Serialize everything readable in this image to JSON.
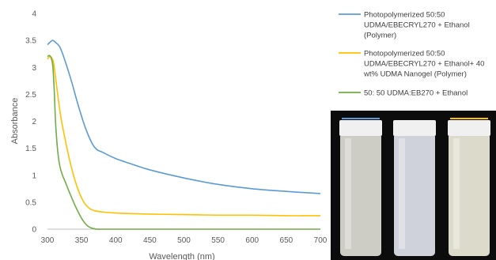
{
  "chart_data": {
    "type": "line",
    "xlabel": "Wavelength (nm)",
    "ylabel": "Absorbance",
    "xlim": [
      300,
      700
    ],
    "ylim": [
      0,
      4
    ],
    "xticks": [
      300,
      350,
      400,
      450,
      500,
      550,
      600,
      650,
      700
    ],
    "yticks": [
      0,
      0.5,
      1,
      1.5,
      2,
      2.5,
      3,
      3.5,
      4
    ],
    "grid": false,
    "legend_position": "top-right",
    "series": [
      {
        "name_lines": [
          "Photopolymerized 50:50",
          "UDMA/EBECRYL270 + Ethanol",
          "(Polymer)"
        ],
        "color": "#5b9bd5",
        "x": [
          300,
          305,
          308,
          312,
          318,
          325,
          335,
          345,
          355,
          365,
          372,
          380,
          400,
          425,
          450,
          500,
          550,
          600,
          650,
          700
        ],
        "y": [
          3.42,
          3.48,
          3.5,
          3.46,
          3.38,
          3.15,
          2.75,
          2.3,
          1.9,
          1.6,
          1.48,
          1.43,
          1.31,
          1.2,
          1.1,
          0.95,
          0.83,
          0.75,
          0.7,
          0.66
        ]
      },
      {
        "name_lines": [
          "Photopolymerized 50:50",
          "UDMA/EBECRYL270 + Ethanol+ 40",
          "wt% UDMA Nanogel  (Polymer)"
        ],
        "color": "#ffc000",
        "x": [
          300,
          303,
          306,
          309,
          312,
          316,
          320,
          325,
          330,
          335,
          340,
          345,
          350,
          355,
          360,
          365,
          370,
          380,
          400,
          450,
          500,
          550,
          600,
          650,
          700
        ],
        "y": [
          3.15,
          3.2,
          3.18,
          3.08,
          2.8,
          2.4,
          2.05,
          1.72,
          1.42,
          1.15,
          0.92,
          0.73,
          0.58,
          0.47,
          0.4,
          0.36,
          0.34,
          0.32,
          0.3,
          0.28,
          0.27,
          0.26,
          0.26,
          0.25,
          0.25
        ]
      },
      {
        "name_lines": [
          "50: 50 UDMA:EB270 + Ethanol"
        ],
        "color": "#70ad47",
        "x": [
          300,
          303,
          306,
          308,
          310,
          312,
          315,
          318,
          322,
          326,
          330,
          335,
          340,
          345,
          350,
          355,
          360,
          365,
          370,
          372,
          380,
          400,
          500,
          600,
          700
        ],
        "y": [
          3.2,
          3.22,
          3.15,
          3.0,
          2.55,
          1.95,
          1.45,
          1.18,
          1.0,
          0.88,
          0.75,
          0.6,
          0.45,
          0.32,
          0.2,
          0.11,
          0.05,
          0.02,
          0.005,
          0.0,
          0.0,
          0.0,
          0.0,
          0.0,
          0.0
        ]
      }
    ]
  },
  "photo": {
    "vials": [
      {
        "cap_line_color": "#5b9bd5",
        "liquid_color": "#d8d8d0"
      },
      {
        "cap_line_color": "",
        "liquid_color": "#dadde6"
      },
      {
        "cap_line_color": "#ffc000",
        "liquid_color": "#e8e6d6"
      }
    ]
  }
}
